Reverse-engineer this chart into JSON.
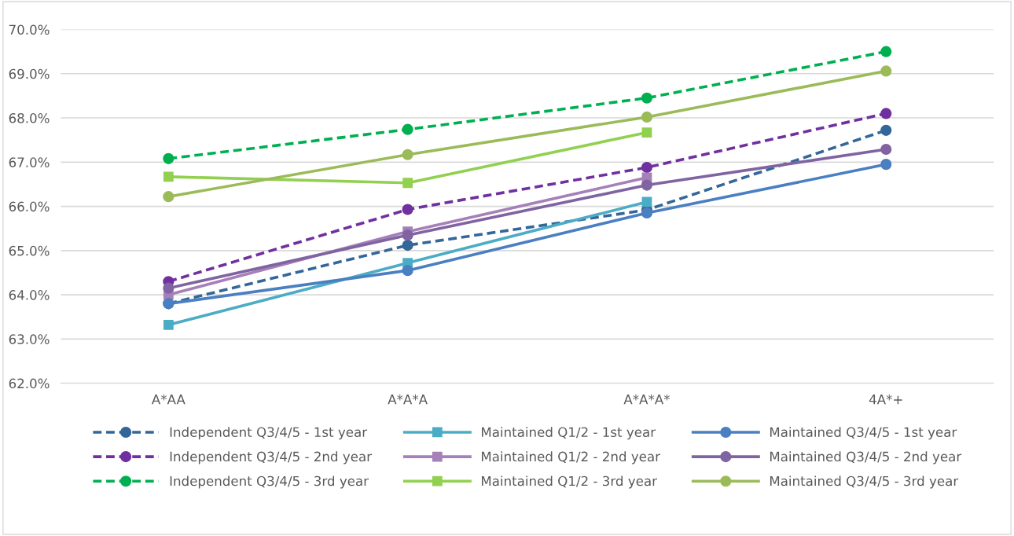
{
  "chart_data": {
    "type": "line",
    "categories": [
      "A*AA",
      "A*A*A",
      "A*A*A*",
      "4A*+"
    ],
    "series": [
      {
        "name": "Independent Q3/4/5 - 1st year",
        "color": "#336699",
        "marker": "circle",
        "line_style": "dashed",
        "values": [
          63.8,
          65.12,
          65.92,
          67.72
        ]
      },
      {
        "name": "Independent Q3/4/5 - 2nd year",
        "color": "#7030a0",
        "marker": "circle",
        "line_style": "dashed",
        "values": [
          64.3,
          65.93,
          66.88,
          68.1
        ]
      },
      {
        "name": "Independent Q3/4/5 - 3rd year",
        "color": "#00b050",
        "marker": "circle",
        "line_style": "dashed",
        "values": [
          67.08,
          67.74,
          68.45,
          69.5
        ]
      },
      {
        "name": "Maintained Q1/2 - 1st year",
        "color": "#4bacc6",
        "marker": "square",
        "line_style": "solid",
        "values": [
          63.32,
          64.72,
          66.1,
          null
        ]
      },
      {
        "name": "Maintained Q1/2 - 2nd year",
        "color": "#a680b8",
        "marker": "square",
        "line_style": "solid",
        "values": [
          64.0,
          65.43,
          66.65,
          null
        ]
      },
      {
        "name": "Maintained Q1/2 - 3rd year",
        "color": "#92d050",
        "marker": "square",
        "line_style": "solid",
        "values": [
          66.67,
          66.53,
          67.67,
          null
        ]
      },
      {
        "name": "Maintained Q3/4/5 - 1st year",
        "color": "#4a7fc1",
        "marker": "circle",
        "line_style": "solid",
        "values": [
          63.8,
          64.55,
          65.85,
          66.95
        ]
      },
      {
        "name": "Maintained Q3/4/5 - 2nd year",
        "color": "#8064a2",
        "marker": "circle",
        "line_style": "solid",
        "values": [
          64.15,
          65.35,
          66.48,
          67.29
        ]
      },
      {
        "name": "Maintained Q3/4/5 - 3rd year",
        "color": "#9bbb59",
        "marker": "circle",
        "line_style": "solid",
        "values": [
          66.22,
          67.17,
          68.02,
          69.06
        ]
      }
    ],
    "ylim": [
      62,
      70
    ],
    "yticks": [
      {
        "value": 62,
        "label": "62.0%"
      },
      {
        "value": 63,
        "label": "63.0%"
      },
      {
        "value": 64,
        "label": "64.0%"
      },
      {
        "value": 65,
        "label": "65.0%"
      },
      {
        "value": 66,
        "label": "66.0%"
      },
      {
        "value": 67,
        "label": "67.0%"
      },
      {
        "value": 68,
        "label": "68.0%"
      },
      {
        "value": 69,
        "label": "69.0%"
      },
      {
        "value": 70,
        "label": "70.0%"
      }
    ],
    "grid": "y",
    "legend": "bottom"
  }
}
